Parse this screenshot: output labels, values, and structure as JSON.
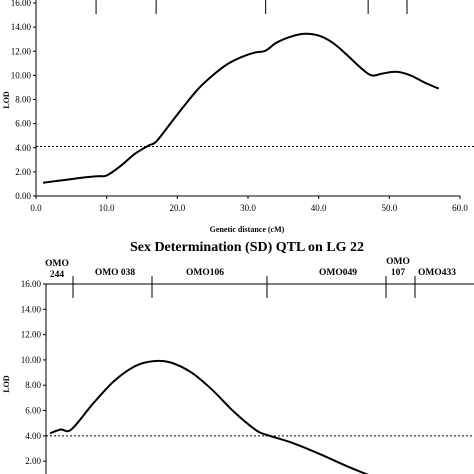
{
  "chart_data": [
    {
      "type": "line",
      "title": "",
      "xlabel": "Genetic distance (cM)",
      "ylabel": "LOD",
      "xlim": [
        0,
        60
      ],
      "ylim": [
        0,
        16
      ],
      "xticks": [
        0,
        10,
        20,
        30,
        40,
        50,
        60
      ],
      "xtick_labels": [
        "0.0",
        "10.0",
        "20.0",
        "30.0",
        "40.0",
        "50.0",
        "60.0"
      ],
      "yticks": [
        0,
        2,
        4,
        6,
        8,
        10,
        12,
        14,
        16
      ],
      "ytick_labels": [
        "0.00",
        "2.00",
        "4.00",
        "6.00",
        "8.00",
        "10.00",
        "12.00",
        "14.00",
        "16.00"
      ],
      "threshold": 4.1,
      "marker_positions": [
        8.5,
        17,
        32.5,
        47,
        52.5
      ],
      "series": [
        {
          "name": "",
          "x": [
            1,
            3,
            5,
            7,
            9,
            10,
            12,
            14,
            16,
            17,
            19,
            21,
            23,
            25,
            27,
            29,
            31,
            32.5,
            34,
            36,
            38,
            40,
            42,
            44,
            46,
            47.5,
            49,
            51,
            53,
            55,
            57
          ],
          "y": [
            1.1,
            1.25,
            1.4,
            1.55,
            1.65,
            1.7,
            2.5,
            3.5,
            4.2,
            4.5,
            6.0,
            7.5,
            8.9,
            10.0,
            10.9,
            11.5,
            11.9,
            12.05,
            12.7,
            13.2,
            13.45,
            13.3,
            12.7,
            11.7,
            10.6,
            10.0,
            10.15,
            10.3,
            10.0,
            9.4,
            8.9
          ]
        }
      ],
      "grid": false
    },
    {
      "type": "line",
      "title": "Sex Determination (SD) QTL on LG 22",
      "xlabel": "",
      "ylabel": "LOD",
      "ylim": [
        0,
        16
      ],
      "xlim": [
        0,
        60
      ],
      "yticks": [
        2,
        4,
        6,
        8,
        10,
        12,
        14,
        16
      ],
      "ytick_labels": [
        "2.00",
        "4.00",
        "6.00",
        "8.00",
        "10.00",
        "12.00",
        "14.00",
        "16.00"
      ],
      "threshold": 4.0,
      "markers": [
        {
          "label": "OMO\n244",
          "position": 4.5
        },
        {
          "label": "OMO 038",
          "position": 16.5
        },
        {
          "label": "OMO106",
          "position": 32.5
        },
        {
          "label": "OMO049",
          "position": 49
        },
        {
          "label": "OMO\n107",
          "position": 53
        },
        {
          "label": "OMO433",
          "position": 58
        }
      ],
      "series": [
        {
          "name": "",
          "x": [
            2,
            3.5,
            5,
            8,
            11,
            14,
            16.5,
            19,
            22,
            25,
            28,
            31,
            32.5,
            36,
            40,
            44,
            47.5
          ],
          "y": [
            4.2,
            4.5,
            4.5,
            6.5,
            8.3,
            9.5,
            9.9,
            9.8,
            9.0,
            7.6,
            5.9,
            4.5,
            4.1,
            3.5,
            2.6,
            1.6,
            0.8
          ]
        }
      ],
      "grid": false
    }
  ]
}
